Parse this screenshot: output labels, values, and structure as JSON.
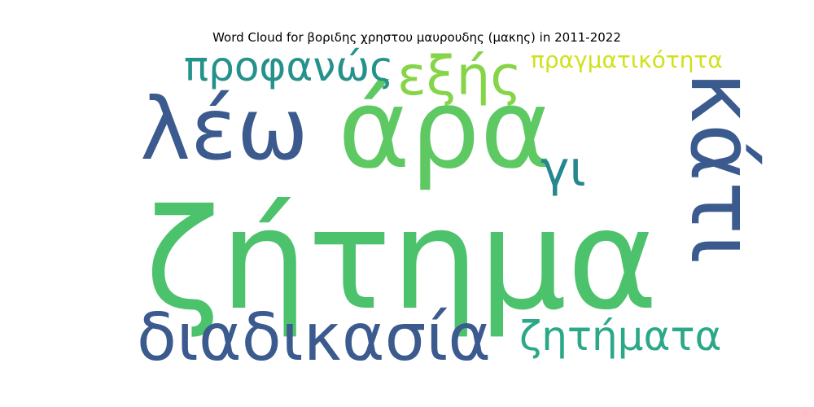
{
  "title": "Word Cloud for βοριδης χρηστου μαυρουδης (μακης) in 2011-2022",
  "words": [
    {
      "text": "ζήτημα",
      "color": "#4cc26c"
    },
    {
      "text": "άρα",
      "color": "#5ec962"
    },
    {
      "text": "λέω",
      "color": "#3b5a8e"
    },
    {
      "text": "κάτι",
      "color": "#3b5a8e"
    },
    {
      "text": "διαδικασία",
      "color": "#3b5a8e"
    },
    {
      "text": "εξής",
      "color": "#86d549"
    },
    {
      "text": "προφανώς",
      "color": "#25918b"
    },
    {
      "text": "πραγματικότητα",
      "color": "#d0e11c"
    },
    {
      "text": "ζητήματα",
      "color": "#2ba887"
    },
    {
      "text": "γι",
      "color": "#25888e"
    }
  ]
}
